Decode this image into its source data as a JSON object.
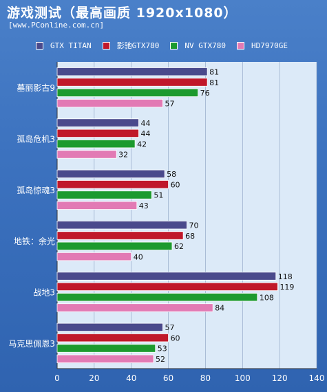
{
  "header": {
    "title": "游戏测试（最高画质 1920x1080）",
    "source": "[www.PConline.com.cn]"
  },
  "chart_data": {
    "type": "bar",
    "orientation": "horizontal",
    "categories": [
      "墓丽影古9",
      "孤岛危机3",
      "孤岛惊魂3",
      "地铁：余光",
      "战地3",
      "马克思佩恩3"
    ],
    "series": [
      {
        "name": "GTX TITAN",
        "color": "#4a4a8c",
        "values": [
          81,
          44,
          58,
          70,
          118,
          57
        ]
      },
      {
        "name": "影驰GTX780",
        "color": "#c0182a",
        "values": [
          81,
          44,
          60,
          68,
          119,
          60
        ]
      },
      {
        "name": "NV GTX780",
        "color": "#1c9a2e",
        "values": [
          76,
          42,
          51,
          62,
          108,
          53
        ]
      },
      {
        "name": "HD7970GE",
        "color": "#e27ab4",
        "values": [
          57,
          32,
          43,
          40,
          84,
          52
        ]
      }
    ],
    "xlim": [
      0,
      140
    ],
    "xticks": [
      0,
      20,
      40,
      60,
      80,
      100,
      120,
      140
    ],
    "grid": "vertical",
    "legend_position": "top",
    "plot_background": "#dceaf8",
    "tick_color": "#ffffff"
  }
}
